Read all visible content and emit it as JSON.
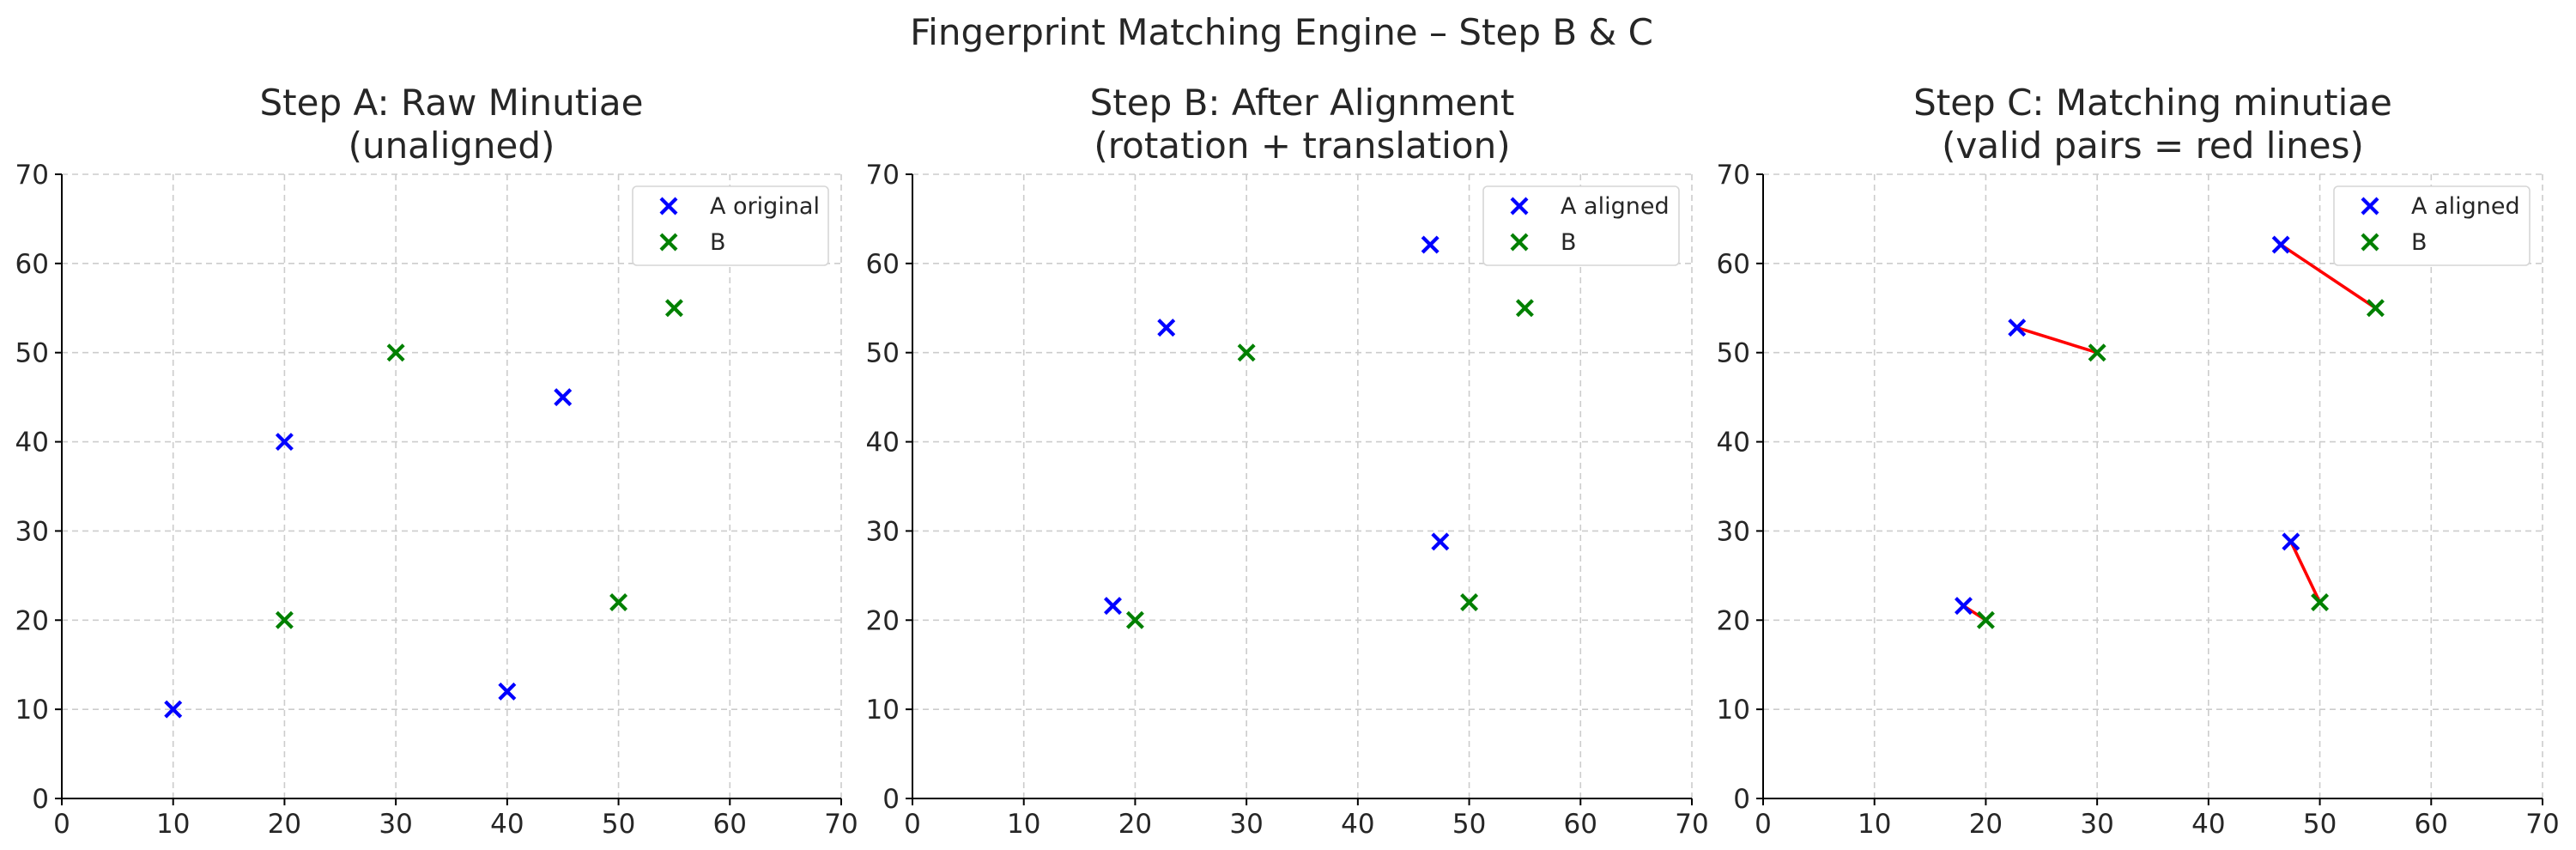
{
  "figure": {
    "title": "Fingerprint Matching Engine – Step B & C"
  },
  "colors": {
    "series_a": "#0000ff",
    "series_b": "#008000",
    "pair_line": "#ff0000"
  },
  "chart_data": [
    {
      "type": "scatter",
      "title_lines": [
        "Step A: Raw Minutiae",
        "(unaligned)"
      ],
      "xlim": [
        0,
        70
      ],
      "ylim": [
        0,
        70
      ],
      "xticks": [
        0,
        10,
        20,
        30,
        40,
        50,
        60,
        70
      ],
      "yticks": [
        0,
        10,
        20,
        30,
        40,
        50,
        60,
        70
      ],
      "grid": true,
      "legend_position": "top-right",
      "marker": "x",
      "series": [
        {
          "name": "A original",
          "color": "#0000ff",
          "points": [
            [
              10,
              10
            ],
            [
              20,
              40
            ],
            [
              40,
              12
            ],
            [
              45,
              45
            ]
          ]
        },
        {
          "name": "B",
          "color": "#008000",
          "points": [
            [
              20,
              20
            ],
            [
              30,
              50
            ],
            [
              50,
              22
            ],
            [
              55,
              55
            ]
          ]
        }
      ],
      "pairs": []
    },
    {
      "type": "scatter",
      "title_lines": [
        "Step B: After Alignment",
        "(rotation + translation)"
      ],
      "xlim": [
        0,
        70
      ],
      "ylim": [
        0,
        70
      ],
      "xticks": [
        0,
        10,
        20,
        30,
        40,
        50,
        60,
        70
      ],
      "yticks": [
        0,
        10,
        20,
        30,
        40,
        50,
        60,
        70
      ],
      "grid": true,
      "legend_position": "top-right",
      "marker": "x",
      "series": [
        {
          "name": "A aligned",
          "color": "#0000ff",
          "points": [
            [
              18,
              21.6
            ],
            [
              22.8,
              52.8
            ],
            [
              46.5,
              62.1
            ],
            [
              47.4,
              28.8
            ]
          ]
        },
        {
          "name": "B",
          "color": "#008000",
          "points": [
            [
              20,
              20
            ],
            [
              30,
              50
            ],
            [
              50,
              22
            ],
            [
              55,
              55
            ]
          ]
        }
      ],
      "pairs": []
    },
    {
      "type": "scatter",
      "title_lines": [
        "Step C: Matching minutiae",
        "(valid pairs = red lines)"
      ],
      "xlim": [
        0,
        70
      ],
      "ylim": [
        0,
        70
      ],
      "xticks": [
        0,
        10,
        20,
        30,
        40,
        50,
        60,
        70
      ],
      "yticks": [
        0,
        10,
        20,
        30,
        40,
        50,
        60,
        70
      ],
      "grid": true,
      "legend_position": "top-right",
      "marker": "x",
      "series": [
        {
          "name": "A aligned",
          "color": "#0000ff",
          "points": [
            [
              18,
              21.6
            ],
            [
              22.8,
              52.8
            ],
            [
              46.5,
              62.1
            ],
            [
              47.4,
              28.8
            ]
          ]
        },
        {
          "name": "B",
          "color": "#008000",
          "points": [
            [
              20,
              20
            ],
            [
              30,
              50
            ],
            [
              50,
              22
            ],
            [
              55,
              55
            ]
          ]
        }
      ],
      "pairs": [
        [
          [
            18,
            21.6
          ],
          [
            20,
            20
          ]
        ],
        [
          [
            22.8,
            52.8
          ],
          [
            30,
            50
          ]
        ],
        [
          [
            46.5,
            62.1
          ],
          [
            55,
            55
          ]
        ],
        [
          [
            47.4,
            28.8
          ],
          [
            50,
            22
          ]
        ]
      ]
    }
  ]
}
